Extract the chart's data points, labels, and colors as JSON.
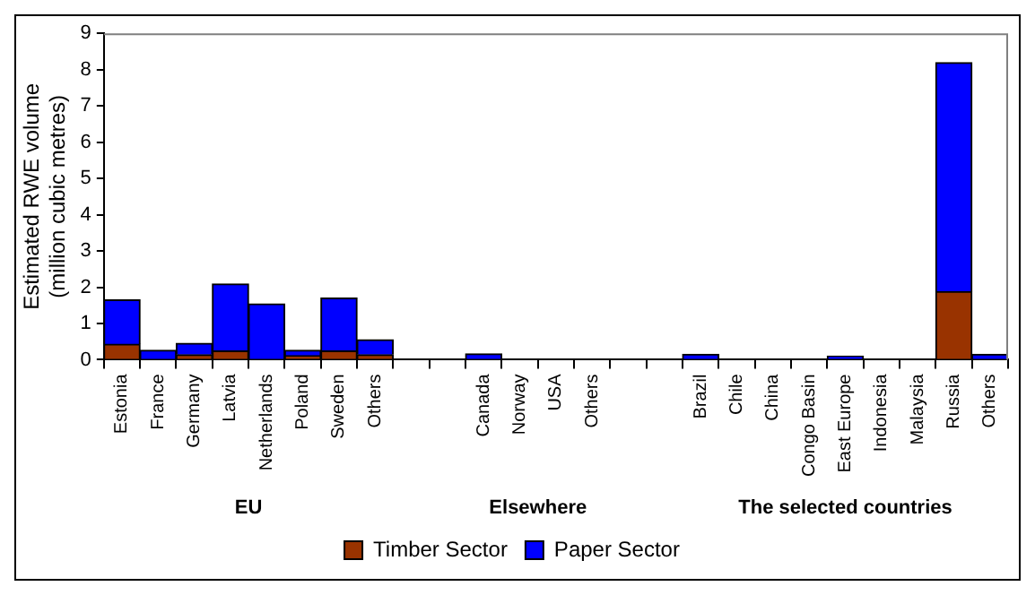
{
  "chart_data": {
    "type": "bar",
    "stacked": true,
    "ylabel": "Estimated RWE volume\n(million cubic metres)",
    "categories": [
      "Estonia",
      "France",
      "Germany",
      "Latvia",
      "Netherlands",
      "Poland",
      "Sweden",
      "Others",
      null,
      null,
      "Canada",
      "Norway",
      "USA",
      "Others",
      null,
      null,
      "Brazil",
      "Chile",
      "China",
      "Congo Basin",
      "East Europe",
      "Indonesia",
      "Malaysia",
      "Russia",
      "Others"
    ],
    "series": [
      {
        "name": "Timber Sector",
        "color": "#993300",
        "values": [
          0.43,
          0,
          0.14,
          0.24,
          0,
          0.11,
          0.24,
          0.14,
          null,
          null,
          0,
          0,
          0,
          0,
          null,
          null,
          0,
          0,
          0,
          0,
          0,
          0,
          0,
          1.88,
          0
        ]
      },
      {
        "name": "Paper Sector",
        "color": "#0000ff",
        "values": [
          1.22,
          0.26,
          0.31,
          1.85,
          1.54,
          0.15,
          1.46,
          0.41,
          null,
          null,
          0.16,
          0,
          0,
          0,
          null,
          null,
          0.15,
          0,
          0,
          0,
          0.1,
          0,
          0,
          6.31,
          0.15
        ]
      }
    ],
    "ylim": [
      0,
      9
    ],
    "yticks": [
      0,
      1,
      2,
      3,
      4,
      5,
      6,
      7,
      8,
      9
    ],
    "grid": false,
    "legend": "bottom",
    "annotations": [
      "EU",
      "Elsewhere",
      "The selected countries"
    ]
  }
}
